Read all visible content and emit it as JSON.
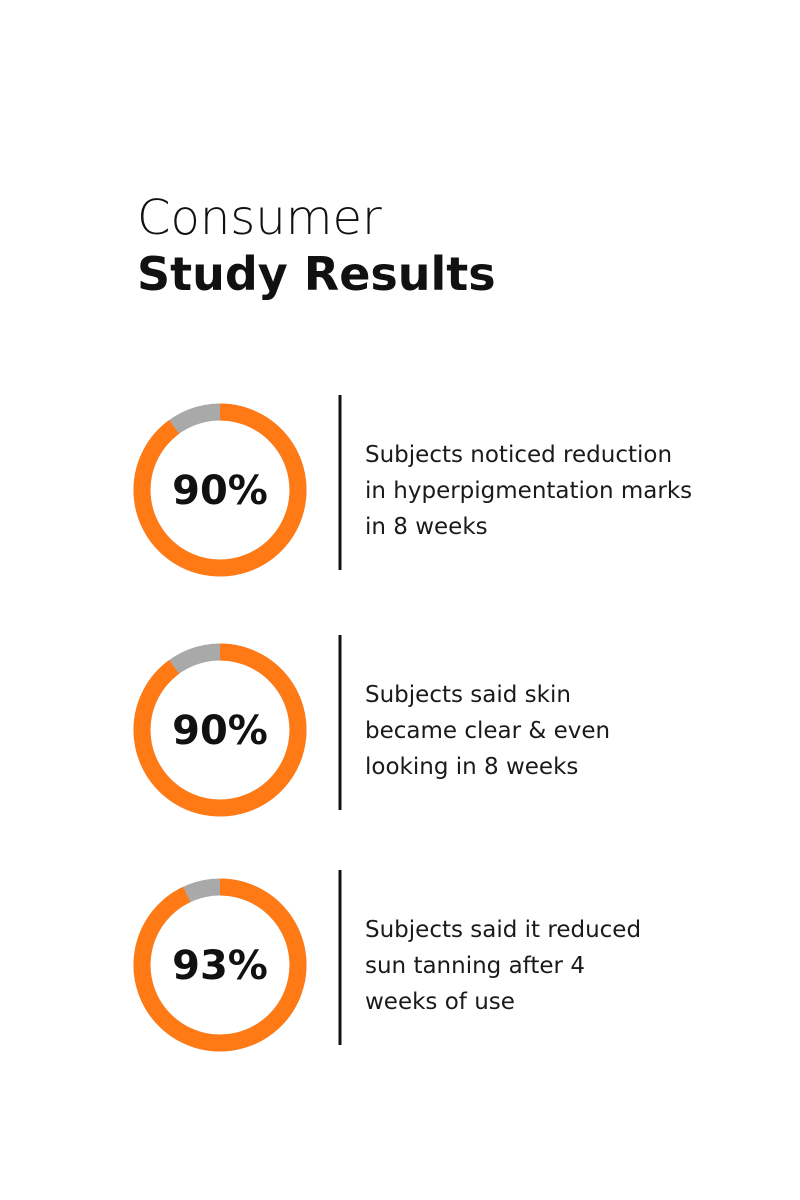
{
  "header": {
    "title_line1": "Consumer",
    "title_line2": "Study Results"
  },
  "chart_data": [
    {
      "type": "donut",
      "values": [
        90
      ],
      "value_labels": [
        "90%"
      ],
      "color": "#ff7a14",
      "track_color": "#a9a9a9",
      "caption_lines": [
        "Subjects noticed reduction",
        "in hyperpigmentation marks",
        "in 8 weeks"
      ]
    },
    {
      "type": "donut",
      "values": [
        90
      ],
      "value_labels": [
        "90%"
      ],
      "color": "#ff7a14",
      "track_color": "#a9a9a9",
      "caption_lines": [
        "Subjects said skin",
        "became clear & even",
        "looking in 8 weeks"
      ]
    },
    {
      "type": "donut",
      "values": [
        93
      ],
      "value_labels": [
        "93%"
      ],
      "color": "#ff7a14",
      "track_color": "#a9a9a9",
      "caption_lines": [
        "Subjects said it reduced",
        "sun tanning after 4",
        "weeks of use"
      ]
    }
  ]
}
